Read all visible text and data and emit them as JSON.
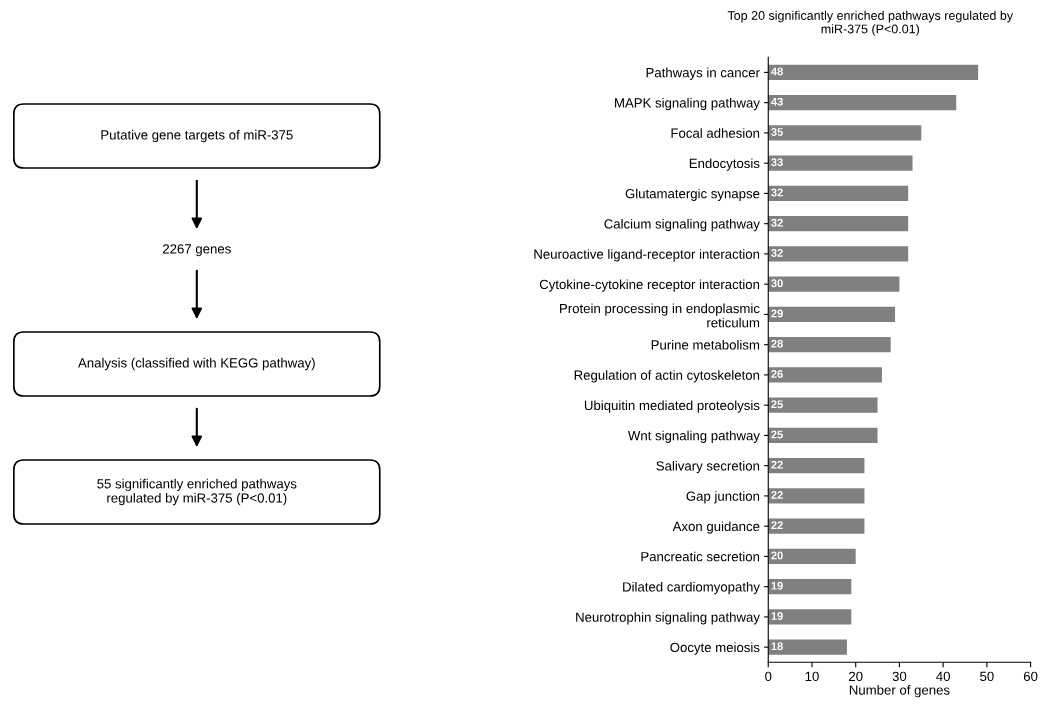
{
  "chart_data": [
    {
      "type": "other",
      "annotations": [
        "Putative gene targets of miR-375",
        "2267 genes",
        "Analysis (classified with KEGG pathway)",
        "55 significantly enriched pathways\nregulated by miR-375 (P<0.01)"
      ]
    },
    {
      "type": "bar",
      "orientation": "horizontal",
      "title": "Top 20 significantly enriched pathways regulated by\nmiR-375 (P<0.01)",
      "xlabel": "Number of genes",
      "categories": [
        "Pathways in cancer",
        "MAPK signaling pathway",
        "Focal adhesion",
        "Endocytosis",
        "Glutamatergic synapse",
        "Calcium signaling pathway",
        "Neuroactive ligand-receptor interaction",
        "Cytokine-cytokine receptor interaction",
        "Protein processing in endoplasmic\nreticulum",
        "Purine metabolism",
        "Regulation of actin cytoskeleton",
        "Ubiquitin mediated proteolysis",
        "Wnt signaling pathway",
        "Salivary secretion",
        "Gap junction",
        "Axon guidance",
        "Pancreatic secretion",
        "Dilated cardiomyopathy",
        "Neurotrophin signaling pathway",
        "Oocyte meiosis"
      ],
      "values": [
        48,
        43,
        35,
        33,
        32,
        32,
        32,
        30,
        29,
        28,
        26,
        25,
        25,
        22,
        22,
        22,
        20,
        19,
        19,
        18
      ],
      "color": "#808080",
      "data_labels": true,
      "grid": false,
      "legend": false,
      "xlim": [
        0,
        60
      ],
      "xticks": [
        0,
        10,
        20,
        30,
        40,
        50,
        60
      ]
    }
  ]
}
